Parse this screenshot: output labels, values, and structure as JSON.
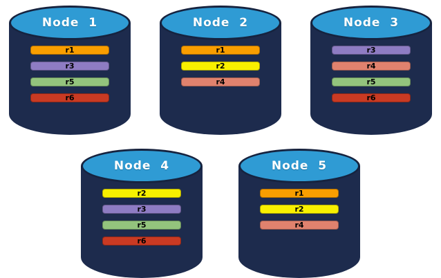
{
  "colors": {
    "cylinder_body": "#1D2B4D",
    "cylinder_top": "#2F9BD4",
    "cylinder_outline": "#16233F",
    "replica_r1": "#F99E00",
    "replica_r2": "#F8F000",
    "replica_r3": "#8E7CC3",
    "replica_r4": "#E0826E",
    "replica_r5": "#93C47D",
    "replica_r6": "#C93A23",
    "label_text": "#FFFFFF",
    "bar_text": "#000000"
  },
  "nodes": [
    {
      "label": "Node  1",
      "replicas": [
        {
          "id": "r1",
          "color": "#F99E00"
        },
        {
          "id": "r3",
          "color": "#8E7CC3"
        },
        {
          "id": "r5",
          "color": "#93C47D"
        },
        {
          "id": "r6",
          "color": "#C93A23"
        }
      ]
    },
    {
      "label": "Node  2",
      "replicas": [
        {
          "id": "r1",
          "color": "#F99E00"
        },
        {
          "id": "r2",
          "color": "#F8F000"
        },
        {
          "id": "r4",
          "color": "#E0826E"
        }
      ]
    },
    {
      "label": "Node  3",
      "replicas": [
        {
          "id": "r3",
          "color": "#8E7CC3"
        },
        {
          "id": "r4",
          "color": "#E0826E"
        },
        {
          "id": "r5",
          "color": "#93C47D"
        },
        {
          "id": "r6",
          "color": "#C93A23"
        }
      ]
    },
    {
      "label": "Node  4",
      "replicas": [
        {
          "id": "r2",
          "color": "#F8F000"
        },
        {
          "id": "r3",
          "color": "#8E7CC3"
        },
        {
          "id": "r5",
          "color": "#93C47D"
        },
        {
          "id": "r6",
          "color": "#C93A23"
        }
      ]
    },
    {
      "label": "Node  5",
      "replicas": [
        {
          "id": "r1",
          "color": "#F99E00"
        },
        {
          "id": "r2",
          "color": "#F8F000"
        },
        {
          "id": "r4",
          "color": "#E0826E"
        }
      ]
    }
  ]
}
